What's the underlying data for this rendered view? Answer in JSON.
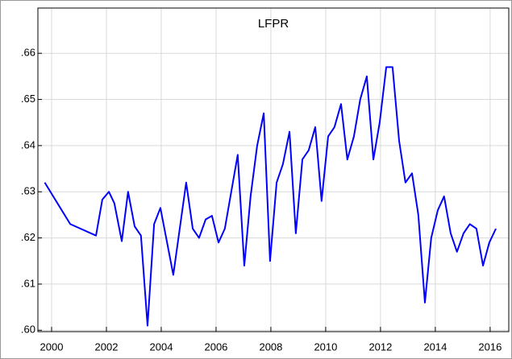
{
  "chart_data": {
    "type": "line",
    "title": "LFPR",
    "series": [
      {
        "name": "LFPR",
        "color": "#0000ff",
        "x": [
          1999.75,
          2000.68,
          2001.62,
          2001.85,
          2002.09,
          2002.29,
          2002.56,
          2002.79,
          2003.03,
          2003.26,
          2003.5,
          2003.74,
          2003.97,
          2004.44,
          2004.91,
          2005.15,
          2005.38,
          2005.62,
          2005.85,
          2006.09,
          2006.32,
          2006.79,
          2007.03,
          2007.26,
          2007.5,
          2007.74,
          2007.97,
          2008.21,
          2008.44,
          2008.68,
          2008.91,
          2009.15,
          2009.38,
          2009.62,
          2009.85,
          2010.09,
          2010.32,
          2010.56,
          2010.79,
          2011.03,
          2011.26,
          2011.5,
          2011.74,
          2011.97,
          2012.21,
          2012.44,
          2012.68,
          2012.91,
          2013.15,
          2013.38,
          2013.62,
          2013.85,
          2014.09,
          2014.32,
          2014.56,
          2014.79,
          2015.03,
          2015.26,
          2015.5,
          2015.74,
          2015.97,
          2016.21
        ],
        "values": [
          0.632,
          0.623,
          0.6205,
          0.6283,
          0.63,
          0.6275,
          0.6193,
          0.63,
          0.6225,
          0.6205,
          0.601,
          0.623,
          0.6265,
          0.612,
          0.632,
          0.622,
          0.62,
          0.624,
          0.6248,
          0.619,
          0.622,
          0.638,
          0.614,
          0.629,
          0.64,
          0.647,
          0.615,
          0.632,
          0.636,
          0.643,
          0.621,
          0.637,
          0.639,
          0.644,
          0.628,
          0.642,
          0.644,
          0.649,
          0.637,
          0.642,
          0.65,
          0.655,
          0.637,
          0.645,
          0.657,
          0.657,
          0.641,
          0.632,
          0.634,
          0.625,
          0.606,
          0.62,
          0.626,
          0.629,
          0.621,
          0.617,
          0.621,
          0.623,
          0.622,
          0.614,
          0.619,
          0.622
        ]
      }
    ],
    "xlim": [
      1999.5,
      2016.68
    ],
    "xticks": [
      2000,
      2002,
      2004,
      2006,
      2008,
      2010,
      2012,
      2014,
      2016
    ],
    "ylim": [
      0.5997,
      0.6698
    ],
    "yticks": [
      {
        "value": 0.6,
        "label": ".60"
      },
      {
        "value": 0.61,
        "label": ".61"
      },
      {
        "value": 0.62,
        "label": ".62"
      },
      {
        "value": 0.63,
        "label": ".63"
      },
      {
        "value": 0.64,
        "label": ".64"
      },
      {
        "value": 0.65,
        "label": ".65"
      },
      {
        "value": 0.66,
        "label": ".66"
      }
    ],
    "grid": true
  }
}
